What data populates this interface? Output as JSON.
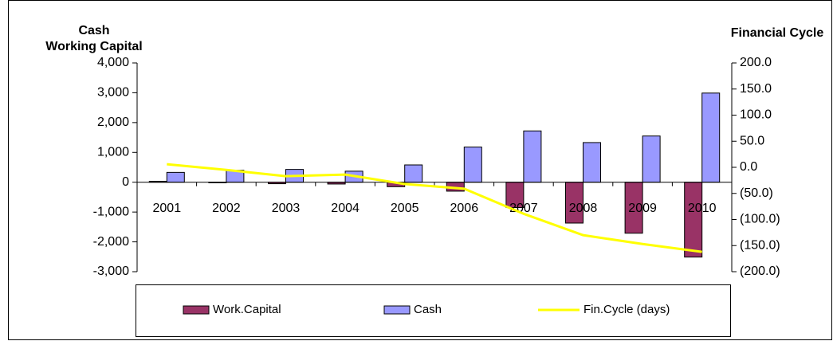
{
  "chart_data": {
    "type": "bar-line",
    "ylabel": [
      "Cash",
      "Working Capital"
    ],
    "y2label": "Financial Cycle",
    "categories": [
      "2001",
      "2002",
      "2003",
      "2004",
      "2005",
      "2006",
      "2007",
      "2008",
      "2009",
      "2010"
    ],
    "series": [
      {
        "name": "Work.Capital",
        "type": "bar",
        "color": "#993366",
        "values": [
          30,
          -20,
          -50,
          -60,
          -150,
          -300,
          -850,
          -1370,
          -1710,
          -2510
        ]
      },
      {
        "name": "Cash",
        "type": "bar",
        "color": "#9999ff",
        "values": [
          330,
          400,
          430,
          370,
          580,
          1180,
          1720,
          1330,
          1550,
          2990
        ]
      },
      {
        "name": "Fin.Cycle (days)",
        "type": "line",
        "axis": "y2",
        "color": "#ffff00",
        "values": [
          6,
          -5,
          -17,
          -14,
          -32,
          -41,
          -89,
          -130,
          -147,
          -162
        ]
      }
    ],
    "ylim": [
      -3000,
      4000
    ],
    "yticks": [
      {
        "value": -3000,
        "label": "-3,000"
      },
      {
        "value": -2000,
        "label": "-2,000"
      },
      {
        "value": -1000,
        "label": "-1,000"
      },
      0,
      {
        "value": 1000,
        "label": "1,000"
      },
      {
        "value": 2000,
        "label": "2,000"
      },
      {
        "value": 3000,
        "label": "3,000"
      },
      {
        "value": 4000,
        "label": "4,000"
      }
    ],
    "y2lim": [
      -200,
      200
    ],
    "y2ticks": [
      {
        "value": -200,
        "label": "(200.0)"
      },
      {
        "value": -150,
        "label": "(150.0)"
      },
      {
        "value": -100,
        "label": "(100.0)"
      },
      {
        "value": -50,
        "label": "(50.0)"
      },
      {
        "value": 0,
        "label": "0.0"
      },
      {
        "value": 50,
        "label": "50.0"
      },
      {
        "value": 100,
        "label": "100.0"
      },
      {
        "value": 150,
        "label": "150.0"
      },
      {
        "value": 200,
        "label": "200.0"
      }
    ],
    "legend": "bottom"
  }
}
